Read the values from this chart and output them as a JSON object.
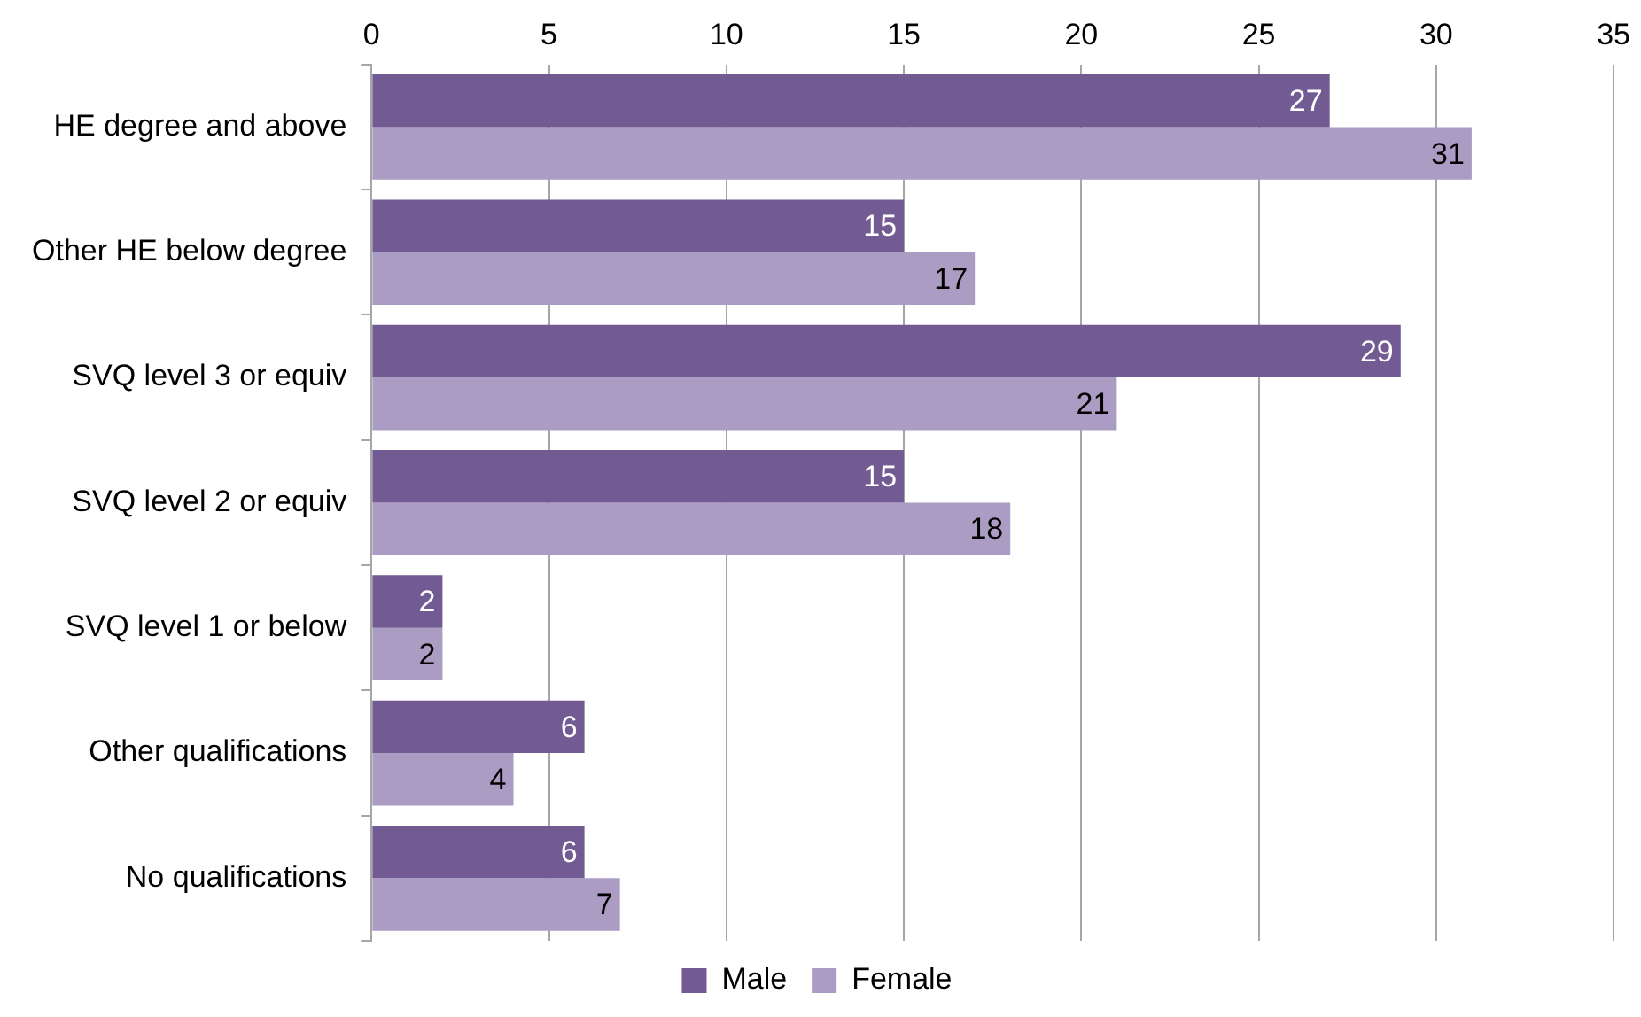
{
  "chart_data": {
    "type": "bar",
    "orientation": "horizontal",
    "categories": [
      "HE degree and above",
      "Other HE below degree",
      "SVQ level 3 or equiv",
      "SVQ level 2 or equiv",
      "SVQ level 1 or below",
      "Other qualifications",
      "No qualifications"
    ],
    "series": [
      {
        "name": "Male",
        "color": "#725a93",
        "values": [
          27,
          15,
          29,
          15,
          2,
          6,
          6
        ]
      },
      {
        "name": "Female",
        "color": "#aa9cc3",
        "values": [
          31,
          17,
          21,
          18,
          2,
          4,
          7
        ]
      }
    ],
    "xlim": [
      0,
      35
    ],
    "xticks": [
      0,
      5,
      10,
      15,
      20,
      25,
      30,
      35
    ],
    "grid": "x",
    "legend": "bottom",
    "data_labels": true
  }
}
